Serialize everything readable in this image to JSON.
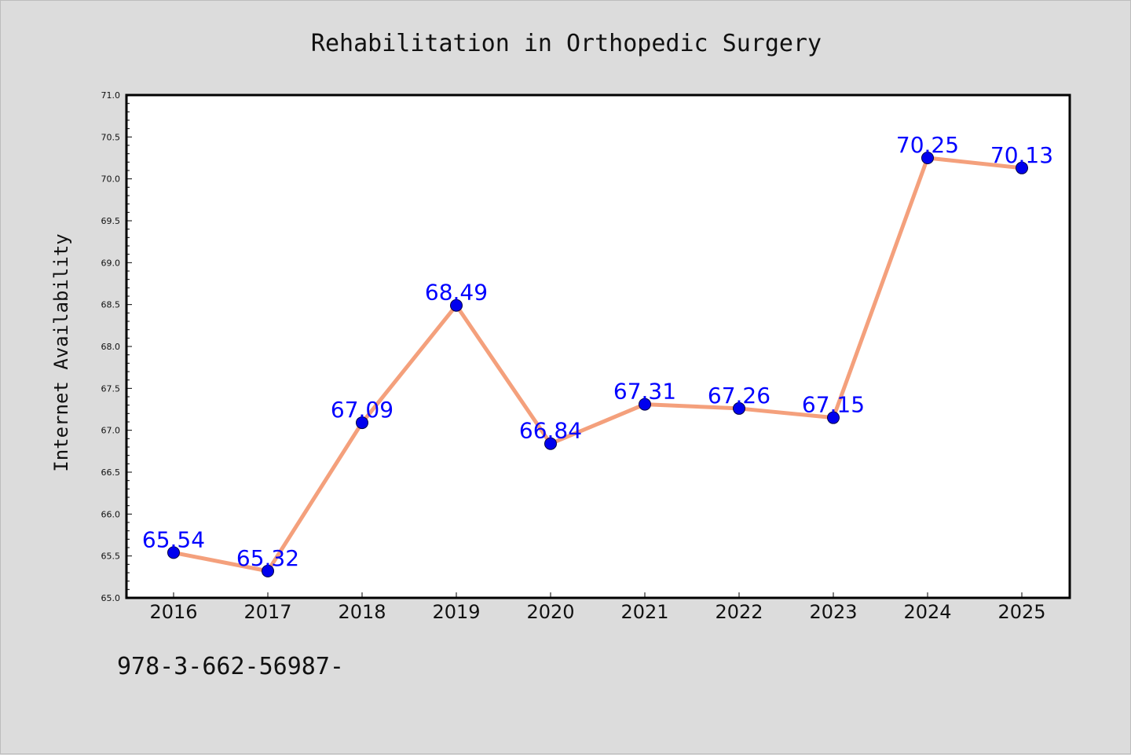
{
  "chart_data": {
    "type": "line",
    "title": "Rehabilitation in Orthopedic Surgery",
    "xlabel": "",
    "ylabel": "Internet Availability",
    "categories": [
      "2016",
      "2017",
      "2018",
      "2019",
      "2020",
      "2021",
      "2022",
      "2023",
      "2024",
      "2025"
    ],
    "series": [
      {
        "values": [
          65.54,
          65.32,
          67.09,
          68.49,
          66.84,
          67.31,
          67.26,
          67.15,
          70.25,
          70.13
        ],
        "data_labels": [
          "65.54",
          "65.32",
          "67.09",
          "68.49",
          "66.84",
          "67.31",
          "67.26",
          "67.15",
          "70.25",
          "70.13"
        ]
      }
    ],
    "ylim": [
      65.0,
      71.0
    ],
    "yticks": [
      "65.0",
      "65.5",
      "66.0",
      "66.5",
      "67.0",
      "67.5",
      "68.0",
      "68.5",
      "69.0",
      "69.5",
      "70.0",
      "70.5",
      "71.0"
    ],
    "grid": false,
    "line_color": "#f4a07c",
    "marker_color": "#0000ee",
    "label_color": "#0000ff"
  },
  "footer_text": "978-3-662-56987-"
}
